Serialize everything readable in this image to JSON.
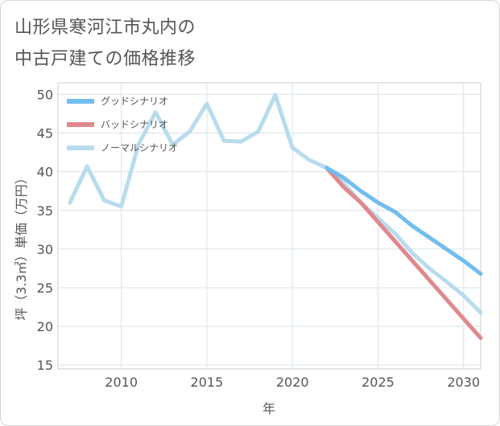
{
  "title_line1": "山形県寒河江市丸内の",
  "title_line2": "中古戸建ての価格推移",
  "chart_data": {
    "type": "line",
    "xlabel": "年",
    "ylabel": "坪（3.3㎡）単価（万円）",
    "xlim": [
      2006.3,
      2031
    ],
    "ylim": [
      14.5,
      51.5
    ],
    "xticks": [
      2010,
      2015,
      2020,
      2025,
      2030
    ],
    "yticks": [
      15,
      20,
      25,
      30,
      35,
      40,
      45,
      50
    ],
    "grid": true,
    "legend_position": "top-left",
    "series": [
      {
        "name": "グッドシナリオ",
        "color": "#72bdf0",
        "x": [
          2022,
          2023,
          2024,
          2025,
          2026,
          2027,
          2028,
          2029,
          2030,
          2031
        ],
        "values": [
          40.5,
          39.2,
          37.5,
          36.0,
          34.8,
          33.0,
          31.5,
          30.0,
          28.5,
          26.8
        ]
      },
      {
        "name": "バッドシナリオ",
        "color": "#e0888e",
        "x": [
          2022,
          2023,
          2024,
          2025,
          2026,
          2027,
          2028,
          2029,
          2030,
          2031
        ],
        "values": [
          40.5,
          38.0,
          36.0,
          33.5,
          31.0,
          28.5,
          26.0,
          23.5,
          21.0,
          18.5
        ]
      },
      {
        "name": "ノーマルシナリオ",
        "color": "#b8dcee",
        "x": [
          2007,
          2008,
          2009,
          2010,
          2011,
          2012,
          2013,
          2014,
          2015,
          2016,
          2017,
          2018,
          2019,
          2020,
          2021,
          2022,
          2023,
          2024,
          2025,
          2026,
          2027,
          2028,
          2029,
          2030,
          2031
        ],
        "values": [
          36.0,
          40.7,
          36.3,
          35.5,
          43.5,
          47.7,
          43.5,
          45.2,
          48.8,
          44.0,
          43.9,
          45.2,
          49.9,
          43.1,
          41.5,
          40.5,
          38.5,
          36.0,
          34.0,
          32.0,
          29.5,
          27.5,
          25.8,
          24.0,
          21.8
        ]
      }
    ]
  }
}
